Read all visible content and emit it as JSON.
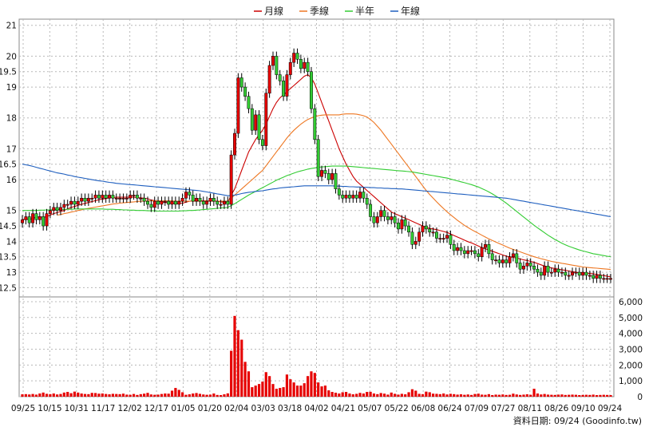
{
  "chart_data": {
    "type": "candlestick",
    "legend": [
      {
        "name": "月線",
        "color": "#cc0000"
      },
      {
        "name": "季線",
        "color": "#ee7722"
      },
      {
        "name": "半年",
        "color": "#33cc33"
      },
      {
        "name": "年線",
        "color": "#1f5fbf"
      }
    ],
    "price_axis": {
      "ylim": [
        12.2,
        21.2
      ],
      "ticks": [
        "21",
        "20",
        "19.5",
        "19",
        "18",
        "17",
        "16.5",
        "16",
        "15",
        "14.5",
        "14",
        "13.5",
        "13",
        "12.5"
      ]
    },
    "volume_axis": {
      "ylim": [
        0,
        6300
      ],
      "ticks": [
        "6,000",
        "5,000",
        "4,000",
        "3,000",
        "2,000",
        "1,000",
        "0"
      ]
    },
    "x_ticks": [
      "09/25",
      "10/15",
      "10/31",
      "11/17",
      "12/02",
      "12/17",
      "01/05",
      "01/20",
      "02/04",
      "03/03",
      "03/18",
      "04/02",
      "04/21",
      "05/07",
      "05/22",
      "06/08",
      "06/24",
      "07/09",
      "07/27",
      "08/11",
      "08/26",
      "09/10",
      "09/24"
    ],
    "source_note": "資料日期: 09/24  (Goodinfo.tw)",
    "close_series": [
      14.7,
      14.8,
      14.6,
      14.9,
      14.7,
      14.8,
      14.5,
      14.9,
      15.0,
      15.1,
      15.0,
      15.1,
      15.2,
      15.2,
      15.3,
      15.2,
      15.3,
      15.4,
      15.3,
      15.4,
      15.4,
      15.5,
      15.4,
      15.5,
      15.4,
      15.5,
      15.4,
      15.4,
      15.4,
      15.4,
      15.4,
      15.5,
      15.5,
      15.4,
      15.4,
      15.3,
      15.2,
      15.1,
      15.3,
      15.2,
      15.3,
      15.3,
      15.2,
      15.3,
      15.2,
      15.3,
      15.4,
      15.6,
      15.5,
      15.3,
      15.4,
      15.3,
      15.2,
      15.3,
      15.4,
      15.3,
      15.2,
      15.2,
      15.3,
      15.2,
      16.8,
      17.5,
      19.3,
      19.0,
      18.7,
      18.3,
      17.6,
      18.1,
      17.3,
      17.1,
      18.8,
      19.7,
      20.0,
      19.4,
      19.2,
      18.7,
      19.4,
      19.8,
      20.1,
      19.9,
      19.6,
      19.8,
      19.5,
      18.3,
      17.3,
      16.1,
      16.3,
      16.2,
      16.0,
      16.2,
      15.7,
      15.5,
      15.4,
      15.5,
      15.4,
      15.5,
      15.4,
      15.6,
      15.4,
      15.2,
      14.8,
      14.6,
      14.8,
      15.0,
      14.8,
      14.7,
      14.8,
      14.6,
      14.4,
      14.7,
      14.5,
      14.3,
      13.9,
      14.0,
      14.3,
      14.5,
      14.4,
      14.3,
      14.3,
      14.1,
      14.1,
      14.1,
      14.2,
      13.9,
      13.7,
      13.8,
      13.7,
      13.6,
      13.7,
      13.7,
      13.6,
      13.5,
      13.8,
      13.9,
      13.6,
      13.4,
      13.4,
      13.3,
      13.4,
      13.3,
      13.5,
      13.6,
      13.3,
      13.1,
      13.2,
      13.3,
      13.2,
      13.1,
      13.0,
      12.9,
      13.2,
      13.0,
      13.0,
      13.1,
      13.0,
      13.0,
      12.9,
      12.9,
      13.0,
      13.0,
      12.9,
      13.0,
      12.9,
      12.9,
      12.8,
      12.9,
      12.8,
      12.8,
      12.8,
      12.8
    ],
    "ma_month": [
      14.7,
      14.73,
      14.7,
      14.75,
      14.78,
      14.8,
      14.78,
      14.8,
      14.85,
      14.9,
      14.93,
      14.97,
      15.0,
      15.05,
      15.1,
      15.13,
      15.17,
      15.2,
      15.23,
      15.26,
      15.29,
      15.32,
      15.35,
      15.37,
      15.39,
      15.41,
      15.42,
      15.43,
      15.43,
      15.43,
      15.43,
      15.43,
      15.43,
      15.42,
      15.41,
      15.4,
      15.38,
      15.34,
      15.32,
      15.3,
      15.28,
      15.26,
      15.25,
      15.24,
      15.23,
      15.23,
      15.24,
      15.27,
      15.3,
      15.31,
      15.32,
      15.32,
      15.31,
      15.31,
      15.31,
      15.31,
      15.3,
      15.28,
      15.27,
      15.26,
      15.5,
      15.7,
      16.0,
      16.3,
      16.6,
      16.9,
      17.1,
      17.3,
      17.45,
      17.6,
      17.8,
      18.05,
      18.3,
      18.5,
      18.65,
      18.75,
      18.85,
      18.95,
      19.05,
      19.15,
      19.25,
      19.35,
      19.4,
      19.3,
      19.1,
      18.8,
      18.5,
      18.2,
      17.9,
      17.6,
      17.3,
      17.0,
      16.75,
      16.5,
      16.3,
      16.1,
      15.95,
      15.85,
      15.75,
      15.65,
      15.55,
      15.45,
      15.35,
      15.25,
      15.15,
      15.05,
      14.95,
      14.9,
      14.85,
      14.8,
      14.75,
      14.7,
      14.65,
      14.6,
      14.55,
      14.5,
      14.45,
      14.42,
      14.4,
      14.38,
      14.35,
      14.32,
      14.29,
      14.24,
      14.19,
      14.14,
      14.09,
      14.04,
      13.99,
      13.95,
      13.9,
      13.85,
      13.8,
      13.76,
      13.72,
      13.68,
      13.64,
      13.6,
      13.56,
      13.52,
      13.5,
      13.48,
      13.46,
      13.43,
      13.4,
      13.38,
      13.35,
      13.32,
      13.28,
      13.24,
      13.2,
      13.17,
      13.14,
      13.12,
      13.1,
      13.08,
      13.06,
      13.04,
      13.02,
      13.0,
      12.99,
      12.98,
      12.97,
      12.96,
      12.95,
      12.93,
      12.91,
      12.89,
      12.87,
      12.85
    ],
    "ma_quarter": [
      null,
      null,
      null,
      null,
      null,
      null,
      null,
      null,
      null,
      null,
      14.85,
      14.87,
      14.9,
      14.92,
      14.95,
      14.97,
      15.0,
      15.02,
      15.05,
      15.07,
      15.09,
      15.11,
      15.13,
      15.15,
      15.17,
      15.19,
      15.21,
      15.22,
      15.24,
      15.25,
      15.26,
      15.27,
      15.28,
      15.29,
      15.3,
      15.3,
      15.31,
      15.31,
      15.31,
      15.31,
      15.31,
      15.31,
      15.31,
      15.31,
      15.3,
      15.3,
      15.3,
      15.3,
      15.3,
      15.3,
      15.3,
      15.3,
      15.3,
      15.3,
      15.3,
      15.3,
      15.3,
      15.3,
      15.3,
      15.3,
      15.4,
      15.5,
      15.6,
      15.7,
      15.8,
      15.9,
      16.0,
      16.1,
      16.2,
      16.3,
      16.45,
      16.6,
      16.75,
      16.9,
      17.05,
      17.2,
      17.35,
      17.48,
      17.6,
      17.7,
      17.8,
      17.88,
      17.95,
      18.0,
      18.04,
      18.07,
      18.09,
      18.1,
      18.1,
      18.1,
      18.1,
      18.1,
      18.12,
      18.13,
      18.13,
      18.13,
      18.12,
      18.1,
      18.07,
      18.03,
      17.95,
      17.85,
      17.73,
      17.6,
      17.45,
      17.3,
      17.15,
      17.0,
      16.85,
      16.7,
      16.55,
      16.4,
      16.25,
      16.1,
      15.95,
      15.8,
      15.65,
      15.52,
      15.4,
      15.28,
      15.17,
      15.06,
      14.96,
      14.86,
      14.77,
      14.68,
      14.6,
      14.52,
      14.45,
      14.38,
      14.32,
      14.26,
      14.2,
      14.14,
      14.08,
      14.03,
      13.98,
      13.93,
      13.88,
      13.83,
      13.78,
      13.74,
      13.7,
      13.66,
      13.62,
      13.58,
      13.54,
      13.5,
      13.47,
      13.44,
      13.41,
      13.38,
      13.35,
      13.33,
      13.31,
      13.29,
      13.27,
      13.25,
      13.23,
      13.21,
      13.19,
      13.17,
      13.16,
      13.15,
      13.14,
      13.13,
      13.12,
      13.11,
      13.1,
      13.09
    ],
    "ma_half": [
      15.0,
      15.0,
      15.0,
      15.0,
      15.0,
      15.01,
      15.01,
      15.02,
      15.02,
      15.03,
      15.03,
      15.03,
      15.04,
      15.04,
      15.04,
      15.05,
      15.05,
      15.05,
      15.05,
      15.05,
      15.05,
      15.05,
      15.05,
      15.05,
      15.04,
      15.04,
      15.04,
      15.03,
      15.03,
      15.02,
      15.02,
      15.01,
      15.01,
      15.0,
      15.0,
      15.0,
      14.99,
      14.99,
      14.99,
      14.98,
      14.98,
      14.98,
      14.98,
      14.98,
      14.98,
      14.98,
      14.99,
      14.99,
      15.0,
      15.0,
      15.01,
      15.02,
      15.03,
      15.04,
      15.05,
      15.06,
      15.07,
      15.08,
      15.09,
      15.1,
      15.16,
      15.22,
      15.29,
      15.36,
      15.43,
      15.5,
      15.56,
      15.62,
      15.68,
      15.74,
      15.8,
      15.86,
      15.92,
      15.98,
      16.03,
      16.08,
      16.13,
      16.17,
      16.21,
      16.25,
      16.28,
      16.31,
      16.34,
      16.36,
      16.38,
      16.4,
      16.41,
      16.42,
      16.43,
      16.44,
      16.44,
      16.44,
      16.44,
      16.44,
      16.43,
      16.42,
      16.41,
      16.4,
      16.39,
      16.38,
      16.37,
      16.36,
      16.35,
      16.34,
      16.33,
      16.32,
      16.31,
      16.3,
      16.29,
      16.28,
      16.27,
      16.26,
      16.25,
      16.23,
      16.21,
      16.19,
      16.17,
      16.15,
      16.13,
      16.11,
      16.09,
      16.07,
      16.05,
      16.02,
      15.99,
      15.96,
      15.93,
      15.9,
      15.87,
      15.84,
      15.8,
      15.76,
      15.71,
      15.66,
      15.6,
      15.54,
      15.47,
      15.4,
      15.32,
      15.24,
      15.15,
      15.06,
      14.97,
      14.88,
      14.79,
      14.7,
      14.61,
      14.52,
      14.44,
      14.36,
      14.28,
      14.2,
      14.13,
      14.06,
      14.0,
      13.94,
      13.89,
      13.84,
      13.8,
      13.76,
      13.72,
      13.69,
      13.66,
      13.63,
      13.6,
      13.58,
      13.56,
      13.54,
      13.52,
      13.5
    ],
    "ma_year": [
      16.5,
      16.48,
      16.46,
      16.43,
      16.4,
      16.37,
      16.34,
      16.31,
      16.28,
      16.25,
      16.22,
      16.2,
      16.18,
      16.15,
      16.13,
      16.1,
      16.08,
      16.06,
      16.04,
      16.02,
      16.0,
      15.98,
      15.96,
      15.95,
      15.93,
      15.91,
      15.9,
      15.88,
      15.87,
      15.86,
      15.85,
      15.84,
      15.83,
      15.82,
      15.81,
      15.8,
      15.79,
      15.78,
      15.77,
      15.76,
      15.75,
      15.74,
      15.73,
      15.72,
      15.71,
      15.7,
      15.69,
      15.68,
      15.67,
      15.66,
      15.65,
      15.64,
      15.62,
      15.6,
      15.58,
      15.56,
      15.54,
      15.52,
      15.5,
      15.48,
      15.48,
      15.5,
      15.52,
      15.55,
      15.57,
      15.59,
      15.6,
      15.62,
      15.63,
      15.64,
      15.66,
      15.68,
      15.7,
      15.71,
      15.73,
      15.74,
      15.75,
      15.76,
      15.77,
      15.78,
      15.79,
      15.8,
      15.8,
      15.8,
      15.8,
      15.8,
      15.8,
      15.8,
      15.8,
      15.8,
      15.79,
      15.79,
      15.78,
      15.78,
      15.77,
      15.77,
      15.76,
      15.76,
      15.75,
      15.75,
      15.74,
      15.74,
      15.73,
      15.73,
      15.72,
      15.72,
      15.71,
      15.71,
      15.7,
      15.7,
      15.69,
      15.68,
      15.67,
      15.66,
      15.65,
      15.64,
      15.63,
      15.62,
      15.61,
      15.6,
      15.59,
      15.58,
      15.57,
      15.56,
      15.55,
      15.54,
      15.53,
      15.52,
      15.51,
      15.5,
      15.49,
      15.48,
      15.47,
      15.46,
      15.45,
      15.44,
      15.43,
      15.42,
      15.41,
      15.4,
      15.38,
      15.36,
      15.34,
      15.32,
      15.3,
      15.28,
      15.26,
      15.24,
      15.22,
      15.2,
      15.18,
      15.16,
      15.14,
      15.12,
      15.1,
      15.08,
      15.06,
      15.04,
      15.02,
      15.0,
      14.98,
      14.96,
      14.94,
      14.92,
      14.9,
      14.88,
      14.86,
      14.84,
      14.82,
      14.8
    ],
    "volume": [
      150,
      160,
      140,
      170,
      130,
      200,
      260,
      180,
      160,
      200,
      140,
      170,
      260,
      300,
      220,
      320,
      260,
      200,
      170,
      160,
      240,
      230,
      190,
      200,
      170,
      150,
      180,
      170,
      160,
      190,
      130,
      120,
      170,
      110,
      160,
      190,
      240,
      140,
      120,
      130,
      170,
      200,
      190,
      380,
      550,
      430,
      280,
      120,
      150,
      200,
      230,
      180,
      140,
      120,
      130,
      200,
      110,
      100,
      150,
      210,
      2900,
      5100,
      4200,
      3600,
      2200,
      1600,
      600,
      700,
      800,
      950,
      1550,
      1300,
      800,
      500,
      550,
      600,
      1400,
      1100,
      900,
      700,
      700,
      850,
      1300,
      1600,
      1500,
      900,
      650,
      700,
      400,
      300,
      250,
      200,
      280,
      300,
      200,
      150,
      180,
      240,
      200,
      300,
      310,
      200,
      160,
      230,
      190,
      130,
      260,
      180,
      130,
      180,
      150,
      280,
      470,
      380,
      180,
      160,
      320,
      280,
      190,
      180,
      160,
      200,
      140,
      180,
      160,
      130,
      150,
      120,
      140,
      110,
      170,
      190,
      130,
      120,
      160,
      100,
      130,
      120,
      140,
      110,
      120,
      190,
      140,
      110,
      130,
      150,
      120,
      500,
      200,
      140,
      170,
      130,
      120,
      110,
      130,
      140,
      110,
      120,
      130,
      120,
      100,
      110,
      120,
      110,
      130,
      100,
      110,
      120,
      110,
      100
    ]
  }
}
